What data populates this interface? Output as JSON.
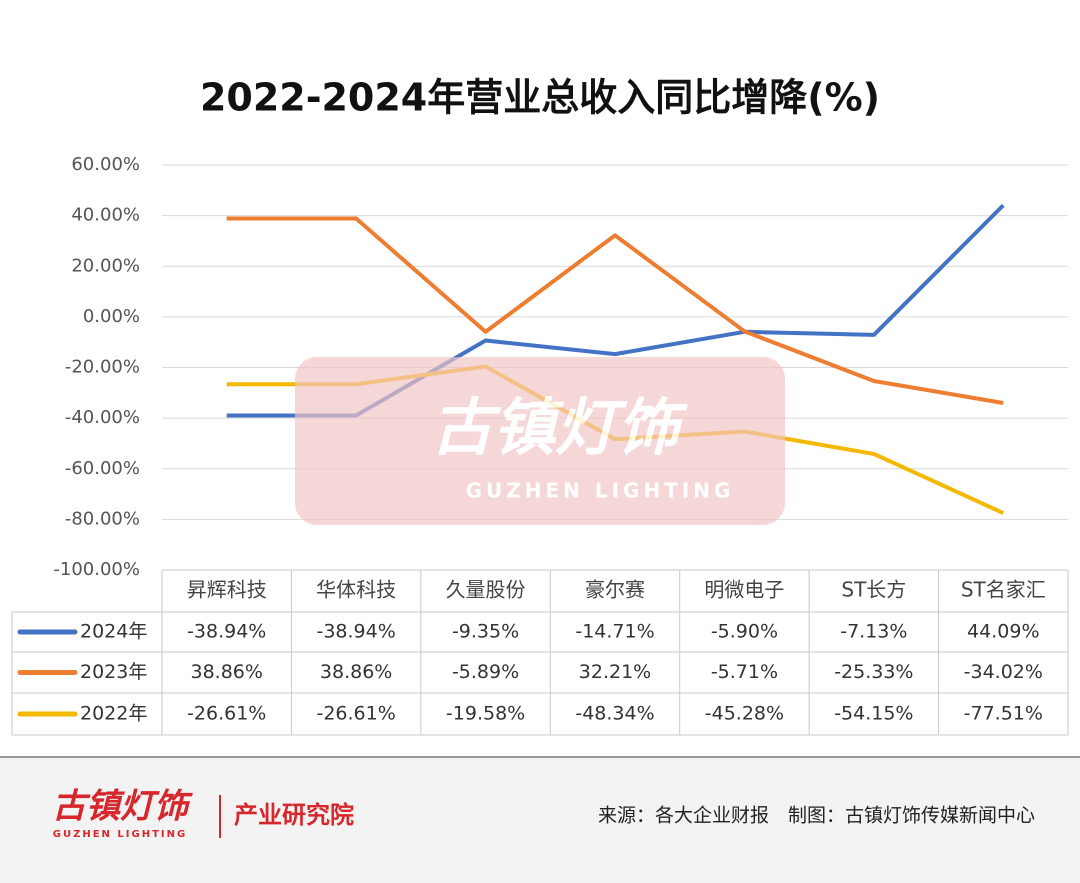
{
  "chart_data": {
    "type": "line",
    "title": "2022-2024年营业总收入同比增降(%)",
    "categories": [
      "昇辉科技",
      "华体科技",
      "久量股份",
      "豪尔赛",
      "明微电子",
      "ST长方",
      "ST名家汇"
    ],
    "series": [
      {
        "name": "2024年",
        "color": "#4472c4",
        "values": [
          -38.94,
          -38.94,
          -9.35,
          -14.71,
          -5.9,
          -7.13,
          44.09
        ],
        "value_labels": [
          "-38.94%",
          "-38.94%",
          "-9.35%",
          "-14.71%",
          "-5.90%",
          "-7.13%",
          "44.09%"
        ]
      },
      {
        "name": "2023年",
        "color": "#ed7d31",
        "values": [
          38.86,
          38.86,
          -5.89,
          32.21,
          -5.71,
          -25.33,
          -34.02
        ],
        "value_labels": [
          "38.86%",
          "38.86%",
          "-5.89%",
          "32.21%",
          "-5.71%",
          "-25.33%",
          "-34.02%"
        ]
      },
      {
        "name": "2022年",
        "color": "#f5b800",
        "values": [
          -26.61,
          -26.61,
          -19.58,
          -48.34,
          -45.28,
          -54.15,
          -77.51
        ],
        "value_labels": [
          "-26.61%",
          "-26.61%",
          "-19.58%",
          "-48.34%",
          "-45.28%",
          "-54.15%",
          "-77.51%"
        ]
      }
    ],
    "ylim": [
      -100,
      60
    ],
    "yticks": [
      {
        "value": -100,
        "label": "-100.00%"
      },
      {
        "value": -80,
        "label": "-80.00%"
      },
      {
        "value": -60,
        "label": "-60.00%"
      },
      {
        "value": -40,
        "label": "-40.00%"
      },
      {
        "value": -20,
        "label": "-20.00%"
      },
      {
        "value": 0,
        "label": "0.00%"
      },
      {
        "value": 20,
        "label": "20.00%"
      },
      {
        "value": 40,
        "label": "40.00%"
      },
      {
        "value": 60,
        "label": "60.00%"
      }
    ],
    "grid": true
  },
  "watermark": {
    "brand": "古镇灯饰",
    "brand_en": "GUZHEN LIGHTING"
  },
  "footer": {
    "brand": "古镇灯饰",
    "brand_en": "GUZHEN LIGHTING",
    "institute": "产业研究院",
    "source": "来源：各大企业财报　制图：古镇灯饰传媒新闻中心"
  }
}
